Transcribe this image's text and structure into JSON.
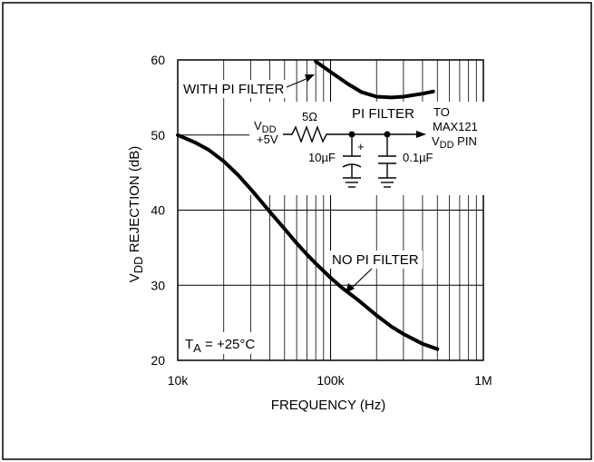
{
  "chart_data": {
    "type": "line",
    "title": "",
    "xlabel": "FREQUENCY (Hz)",
    "ylabel": {
      "main": "V",
      "sub": "DD",
      "rest": " REJECTION (dB)"
    },
    "x_scale": "log",
    "xlim": [
      10000,
      1000000
    ],
    "ylim": [
      20,
      60
    ],
    "x_ticks": [
      {
        "value": 10000,
        "label": "10k"
      },
      {
        "value": 100000,
        "label": "100k"
      },
      {
        "value": 1000000,
        "label": "1M"
      }
    ],
    "y_ticks": [
      {
        "value": 20,
        "label": "20"
      },
      {
        "value": 30,
        "label": "30"
      },
      {
        "value": 40,
        "label": "40"
      },
      {
        "value": 50,
        "label": "50"
      },
      {
        "value": 60,
        "label": "60"
      }
    ],
    "grid": true,
    "series": [
      {
        "name": "NO PI FILTER",
        "x": [
          10000,
          13000,
          16000,
          20000,
          25000,
          30000,
          35000,
          40000,
          50000,
          60000,
          70000,
          80000,
          100000,
          120000,
          150000,
          200000,
          250000,
          300000,
          350000,
          400000,
          500000
        ],
        "y": [
          50.0,
          49.0,
          48.0,
          46.5,
          44.6,
          42.8,
          41.2,
          39.8,
          37.5,
          35.6,
          34.1,
          32.9,
          31.0,
          29.6,
          28.1,
          26.0,
          24.5,
          23.5,
          22.8,
          22.2,
          21.5
        ]
      },
      {
        "name": "WITH PI FILTER",
        "x": [
          80000,
          100000,
          130000,
          160000,
          200000,
          250000,
          300000,
          400000,
          470000
        ],
        "y": [
          59.8,
          58.4,
          56.8,
          55.7,
          55.1,
          55.0,
          55.1,
          55.5,
          55.8
        ]
      }
    ],
    "annotations": {
      "temperature": {
        "prefix": "T",
        "sub": "A",
        "rest": " = +25°C"
      },
      "no_filter_label": "NO PI FILTER",
      "with_filter_label": "WITH PI FILTER",
      "circuit": {
        "title": "PI FILTER",
        "vdd_main": "V",
        "vdd_sub": "DD",
        "supply": "+5V",
        "resistor": "5Ω",
        "cap1": "10µF",
        "cap1_polarity": "+",
        "cap2": "0.1µF",
        "dest1": "TO",
        "dest2": "MAX121",
        "dest3_main": "V",
        "dest3_sub": "DD",
        "dest3_rest": " PIN"
      }
    }
  }
}
